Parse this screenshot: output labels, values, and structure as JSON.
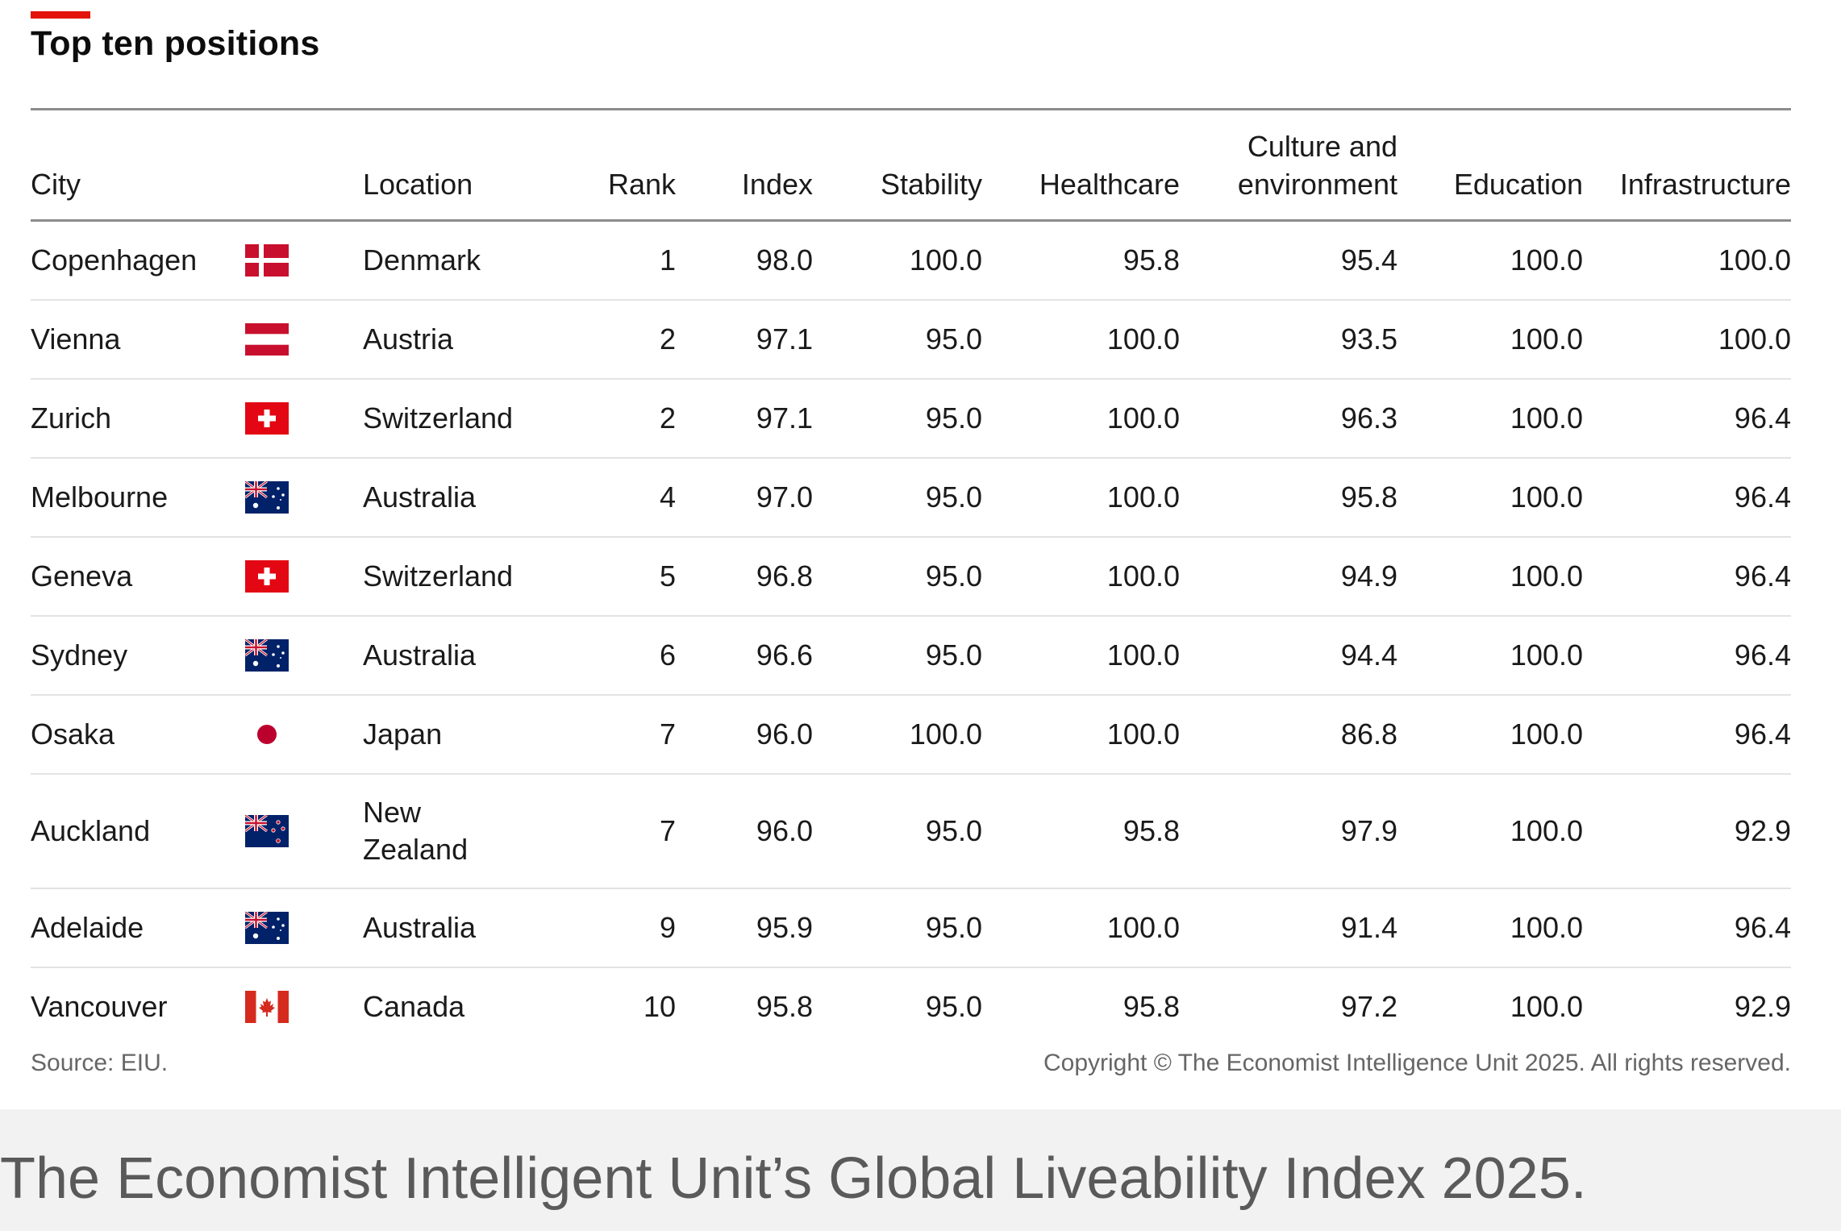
{
  "title": "Top ten positions",
  "headers": {
    "city": "City",
    "location": "Location",
    "rank": "Rank",
    "index": "Index",
    "stability": "Stability",
    "healthcare": "Healthcare",
    "culture_line1": "Culture and",
    "culture_line2": "environment",
    "education": "Education",
    "infrastructure": "Infrastructure"
  },
  "rows": [
    {
      "city": "Copenhagen",
      "flag": "denmark-flag-icon",
      "location": "Denmark",
      "rank": "1",
      "index": "98.0",
      "stability": "100.0",
      "healthcare": "95.8",
      "culture": "95.4",
      "education": "100.0",
      "infrastructure": "100.0"
    },
    {
      "city": "Vienna",
      "flag": "austria-flag-icon",
      "location": "Austria",
      "rank": "2",
      "index": "97.1",
      "stability": "95.0",
      "healthcare": "100.0",
      "culture": "93.5",
      "education": "100.0",
      "infrastructure": "100.0"
    },
    {
      "city": "Zurich",
      "flag": "switzerland-flag-icon",
      "location": "Switzerland",
      "rank": "2",
      "index": "97.1",
      "stability": "95.0",
      "healthcare": "100.0",
      "culture": "96.3",
      "education": "100.0",
      "infrastructure": "96.4"
    },
    {
      "city": "Melbourne",
      "flag": "australia-flag-icon",
      "location": "Australia",
      "rank": "4",
      "index": "97.0",
      "stability": "95.0",
      "healthcare": "100.0",
      "culture": "95.8",
      "education": "100.0",
      "infrastructure": "96.4"
    },
    {
      "city": "Geneva",
      "flag": "switzerland-flag-icon",
      "location": "Switzerland",
      "rank": "5",
      "index": "96.8",
      "stability": "95.0",
      "healthcare": "100.0",
      "culture": "94.9",
      "education": "100.0",
      "infrastructure": "96.4"
    },
    {
      "city": "Sydney",
      "flag": "australia-flag-icon",
      "location": "Australia",
      "rank": "6",
      "index": "96.6",
      "stability": "95.0",
      "healthcare": "100.0",
      "culture": "94.4",
      "education": "100.0",
      "infrastructure": "96.4"
    },
    {
      "city": "Osaka",
      "flag": "japan-flag-icon",
      "location": "Japan",
      "rank": "7",
      "index": "96.0",
      "stability": "100.0",
      "healthcare": "100.0",
      "culture": "86.8",
      "education": "100.0",
      "infrastructure": "96.4"
    },
    {
      "city": "Auckland",
      "flag": "new-zealand-flag-icon",
      "location_line1": "New",
      "location_line2": "Zealand",
      "rank": "7",
      "index": "96.0",
      "stability": "95.0",
      "healthcare": "95.8",
      "culture": "97.9",
      "education": "100.0",
      "infrastructure": "92.9"
    },
    {
      "city": "Adelaide",
      "flag": "australia-flag-icon",
      "location": "Australia",
      "rank": "9",
      "index": "95.9",
      "stability": "95.0",
      "healthcare": "100.0",
      "culture": "91.4",
      "education": "100.0",
      "infrastructure": "96.4"
    },
    {
      "city": "Vancouver",
      "flag": "canada-flag-icon",
      "location": "Canada",
      "rank": "10",
      "index": "95.8",
      "stability": "95.0",
      "healthcare": "95.8",
      "culture": "97.2",
      "education": "100.0",
      "infrastructure": "92.9"
    }
  ],
  "source": "Source: EIU.",
  "copyright": "Copyright © The Economist Intelligence Unit 2025. All rights reserved.",
  "caption": "The Economist Intelligent Unit’s Global Liveability Index 2025.",
  "colors": {
    "accent": "#e3120b",
    "rule": "#8c8c8c",
    "caption_bg": "#f2f2f2"
  }
}
